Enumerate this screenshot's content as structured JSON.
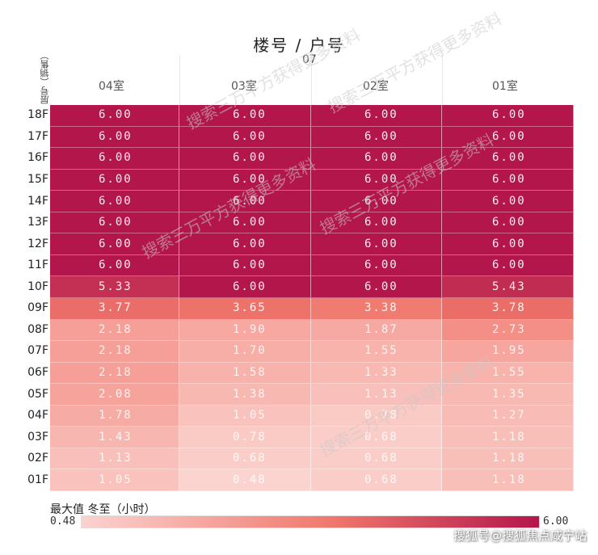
{
  "chart_data": {
    "type": "heatmap",
    "title": "楼号  /  户号",
    "building": "07",
    "y_axis_label": "层号（销售）",
    "columns": [
      "04室",
      "03室",
      "02室",
      "01室"
    ],
    "rows": [
      "18F",
      "17F",
      "16F",
      "15F",
      "14F",
      "13F",
      "12F",
      "11F",
      "10F",
      "09F",
      "08F",
      "07F",
      "06F",
      "05F",
      "04F",
      "03F",
      "02F",
      "01F"
    ],
    "values": [
      [
        6.0,
        6.0,
        6.0,
        6.0
      ],
      [
        6.0,
        6.0,
        6.0,
        6.0
      ],
      [
        6.0,
        6.0,
        6.0,
        6.0
      ],
      [
        6.0,
        6.0,
        6.0,
        6.0
      ],
      [
        6.0,
        6.0,
        6.0,
        6.0
      ],
      [
        6.0,
        6.0,
        6.0,
        6.0
      ],
      [
        6.0,
        6.0,
        6.0,
        6.0
      ],
      [
        6.0,
        6.0,
        6.0,
        6.0
      ],
      [
        5.33,
        6.0,
        6.0,
        5.43
      ],
      [
        3.77,
        3.65,
        3.38,
        3.78
      ],
      [
        2.18,
        1.9,
        1.87,
        2.73
      ],
      [
        2.18,
        1.7,
        1.55,
        1.95
      ],
      [
        2.18,
        1.58,
        1.33,
        1.55
      ],
      [
        2.08,
        1.38,
        1.13,
        1.35
      ],
      [
        1.78,
        1.05,
        0.78,
        1.27
      ],
      [
        1.43,
        0.78,
        0.68,
        1.18
      ],
      [
        1.13,
        0.68,
        0.68,
        1.18
      ],
      [
        1.05,
        0.48,
        0.68,
        1.18
      ]
    ],
    "legend": {
      "title": "最大值 冬至（小时）",
      "min_label": "0.48",
      "max_label": "6.00",
      "min": 0.48,
      "max": 6.0,
      "color_low": "#fbd3cf",
      "color_mid": "#f0776c",
      "color_high": "#b3164a"
    }
  },
  "watermark_text": "搜索三万平方获得更多资料",
  "source_label": "搜狐号@搜狐焦点咸宁站"
}
